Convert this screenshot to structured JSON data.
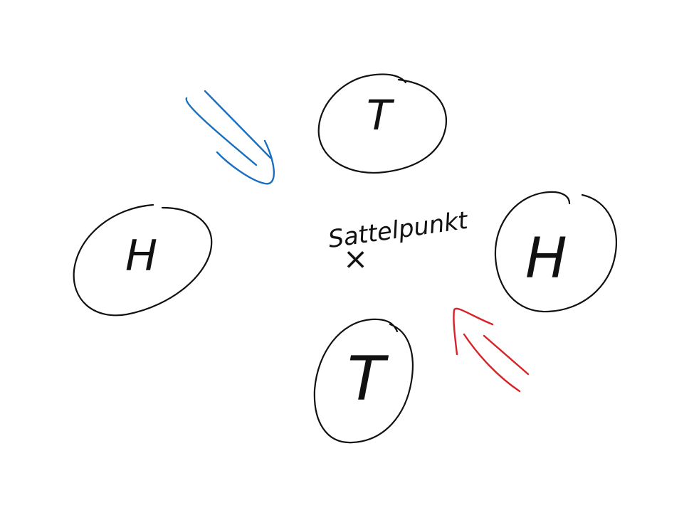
{
  "nodes": {
    "top": {
      "letter": "T",
      "meaning": ""
    },
    "left": {
      "letter": "H"
    },
    "right": {
      "letter": "H"
    },
    "bottom": {
      "letter": "T"
    }
  },
  "center": {
    "label": "Sattelpunkt",
    "marker": "×"
  },
  "colors": {
    "ink": "#111111",
    "blue_arrow": "#1a6fbf",
    "red_arrow": "#d8222a"
  }
}
